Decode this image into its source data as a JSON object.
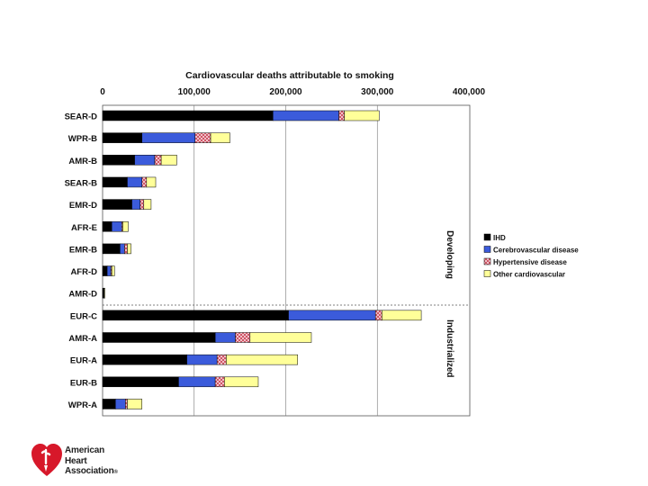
{
  "chart_data": {
    "type": "bar",
    "orientation": "horizontal",
    "stacked": true,
    "title": "Cardiovascular deaths attributable to smoking",
    "xlim": [
      0,
      400000
    ],
    "x_ticks": [
      0,
      100000,
      200000,
      300000,
      400000
    ],
    "x_tick_labels": [
      "0",
      "100,000",
      "200,000",
      "300,000",
      "400,000"
    ],
    "categories": [
      "SEAR-D",
      "WPR-B",
      "AMR-B",
      "SEAR-B",
      "EMR-D",
      "AFR-E",
      "EMR-B",
      "AFR-D",
      "AMR-D",
      "EUR-C",
      "AMR-A",
      "EUR-A",
      "EUR-B",
      "WPR-A"
    ],
    "series": [
      {
        "name": "IHD",
        "color": "#000000",
        "values": [
          186000,
          43000,
          35000,
          27000,
          32000,
          10000,
          19000,
          5000,
          1000,
          203000,
          123000,
          92000,
          83000,
          14000
        ]
      },
      {
        "name": "Cerebrovascular disease",
        "color": "#3b5bdb",
        "values": [
          72000,
          58000,
          22000,
          16000,
          9000,
          11000,
          5000,
          4000,
          500,
          95000,
          22000,
          33000,
          40000,
          11000
        ]
      },
      {
        "name": "Hypertensive disease",
        "color": "#f2c6cc",
        "hatched": true,
        "values": [
          6000,
          17000,
          7000,
          5000,
          4000,
          1000,
          3000,
          1000,
          300,
          7000,
          16000,
          10000,
          10000,
          2000
        ]
      },
      {
        "name": "Other cardiovascular",
        "color": "#ffff99",
        "values": [
          38000,
          21000,
          17000,
          10000,
          8000,
          6000,
          4000,
          3000,
          700,
          43000,
          67000,
          78000,
          37000,
          16000
        ]
      }
    ],
    "groups": [
      {
        "label": "Developing",
        "from": "SEAR-D",
        "to": "AMR-D"
      },
      {
        "label": "Industrialized",
        "from": "EUR-C",
        "to": "WPR-A"
      }
    ],
    "legend_position": "right"
  },
  "logo": {
    "line1": "American",
    "line2": "Heart",
    "line3": "Association",
    "mark": "®"
  }
}
